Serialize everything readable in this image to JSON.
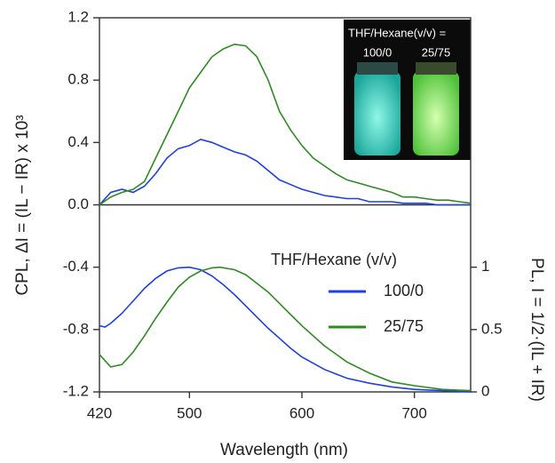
{
  "chart_data": {
    "type": "line",
    "xlabel": "Wavelength (nm)",
    "ylabel": "CPL, ΔI = (IL − IR) x 10³",
    "y2label": "PL, I = 1/2·(IL + IR)",
    "xlim": [
      420,
      750
    ],
    "xticks": [
      420,
      500,
      600,
      700
    ],
    "ylim": [
      -1.2,
      1.2
    ],
    "yticks": [
      1.2,
      0.8,
      0.4,
      {
        "value": 0,
        "label": "0.0"
      },
      -0.4,
      -0.8,
      -1.2
    ],
    "y2lim": [
      0,
      3
    ],
    "y2ticks": [
      0,
      0.5,
      1
    ],
    "legend_title": "THF/Hexane (v/v)",
    "legend": "right",
    "series": [
      {
        "color": "#1f3fe0",
        "x": [
          420,
          430,
          440,
          450,
          460,
          470,
          480,
          490,
          500,
          510,
          520,
          530,
          540,
          550,
          560,
          570,
          580,
          590,
          600,
          610,
          620,
          630,
          640,
          650,
          660,
          670,
          680,
          690,
          700,
          710,
          720,
          730,
          740,
          750
        ],
        "values": [
          0.0,
          0.08,
          0.1,
          0.08,
          0.12,
          0.2,
          0.3,
          0.36,
          0.38,
          0.42,
          0.4,
          0.37,
          0.34,
          0.32,
          0.28,
          0.22,
          0.16,
          0.13,
          0.1,
          0.08,
          0.06,
          0.05,
          0.04,
          0.04,
          0.02,
          0.02,
          0.02,
          0.01,
          0.01,
          0.01,
          0.0,
          0.0,
          0.0,
          0.0
        ]
      },
      {
        "color": "#2e8b22",
        "x": [
          420,
          430,
          440,
          450,
          460,
          470,
          480,
          490,
          500,
          510,
          520,
          530,
          540,
          550,
          560,
          570,
          580,
          590,
          600,
          610,
          620,
          630,
          640,
          650,
          660,
          670,
          680,
          690,
          700,
          710,
          720,
          730,
          740,
          750
        ],
        "values": [
          0.0,
          0.05,
          0.08,
          0.1,
          0.15,
          0.3,
          0.45,
          0.6,
          0.75,
          0.85,
          0.95,
          1.0,
          1.03,
          1.02,
          0.95,
          0.8,
          0.6,
          0.48,
          0.38,
          0.3,
          0.25,
          0.2,
          0.16,
          0.14,
          0.12,
          0.1,
          0.08,
          0.05,
          0.05,
          0.04,
          0.03,
          0.03,
          0.02,
          0.01
        ]
      },
      {
        "name": "100/0",
        "color": "#1f3fe0",
        "axis": "y2",
        "x": [
          420,
          425,
          430,
          440,
          450,
          460,
          470,
          480,
          490,
          500,
          510,
          520,
          530,
          540,
          550,
          560,
          570,
          580,
          590,
          600,
          620,
          640,
          660,
          680,
          700,
          725,
          750
        ],
        "values": [
          0.53,
          0.52,
          0.55,
          0.63,
          0.73,
          0.83,
          0.91,
          0.97,
          0.995,
          1.0,
          0.98,
          0.93,
          0.86,
          0.78,
          0.69,
          0.6,
          0.51,
          0.43,
          0.35,
          0.28,
          0.18,
          0.11,
          0.07,
          0.04,
          0.02,
          0.01,
          0.0
        ]
      },
      {
        "name": "25/75",
        "color": "#2e8b22",
        "axis": "y2",
        "x": [
          420,
          430,
          440,
          450,
          460,
          470,
          480,
          490,
          500,
          510,
          520,
          527,
          540,
          550,
          560,
          570,
          580,
          590,
          600,
          620,
          640,
          660,
          680,
          700,
          725,
          750
        ],
        "values": [
          0.3,
          0.2,
          0.22,
          0.32,
          0.45,
          0.59,
          0.72,
          0.84,
          0.92,
          0.97,
          0.995,
          1.0,
          0.98,
          0.94,
          0.87,
          0.8,
          0.71,
          0.62,
          0.53,
          0.37,
          0.24,
          0.15,
          0.08,
          0.05,
          0.02,
          0.01
        ]
      }
    ]
  },
  "inset": {
    "title": "THF/Hexane(v/v) =",
    "labels": [
      "100/0",
      "25/75"
    ]
  }
}
